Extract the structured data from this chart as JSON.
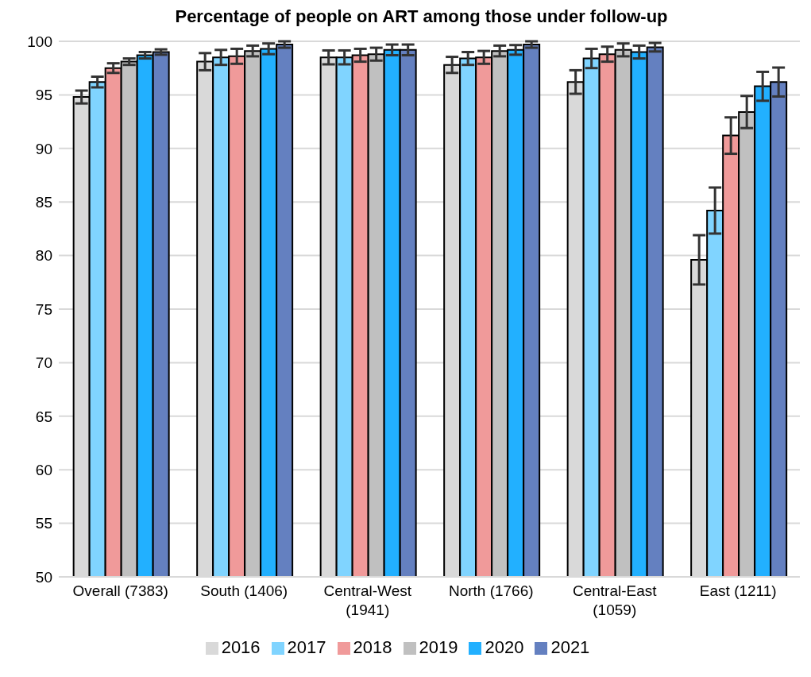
{
  "chart_data": {
    "type": "bar",
    "title": "Percentage of people on ART among those under follow-up",
    "categories": [
      "Overall (7383)",
      "South (1406)",
      "Central-West (1941)",
      "North (1766)",
      "Central-East (1059)",
      "East (1211)"
    ],
    "series": [
      {
        "name": "2016",
        "color": "#d9d9d9",
        "values": [
          94.8,
          98.1,
          98.5,
          97.8,
          96.2,
          79.6
        ],
        "errors": [
          0.6,
          0.8,
          0.65,
          0.75,
          1.1,
          2.3
        ]
      },
      {
        "name": "2017",
        "color": "#80d4ff",
        "values": [
          96.2,
          98.5,
          98.5,
          98.4,
          98.4,
          84.2
        ],
        "errors": [
          0.5,
          0.7,
          0.65,
          0.6,
          0.9,
          2.15
        ]
      },
      {
        "name": "2018",
        "color": "#f09a9a",
        "values": [
          97.5,
          98.6,
          98.7,
          98.5,
          98.8,
          91.2
        ],
        "errors": [
          0.45,
          0.7,
          0.6,
          0.6,
          0.7,
          1.7
        ]
      },
      {
        "name": "2019",
        "color": "#c0c0c0",
        "values": [
          98.1,
          99.1,
          98.8,
          99.1,
          99.2,
          93.4
        ],
        "errors": [
          0.3,
          0.5,
          0.6,
          0.5,
          0.6,
          1.5
        ]
      },
      {
        "name": "2020",
        "color": "#22b0ff",
        "values": [
          98.7,
          99.3,
          99.2,
          99.2,
          99.0,
          95.8
        ],
        "errors": [
          0.3,
          0.5,
          0.5,
          0.45,
          0.6,
          1.35
        ]
      },
      {
        "name": "2021",
        "color": "#6480c0",
        "values": [
          99.0,
          99.7,
          99.2,
          99.7,
          99.45,
          96.2
        ],
        "errors": [
          0.25,
          0.3,
          0.5,
          0.3,
          0.4,
          1.35
        ]
      }
    ],
    "ylim": [
      50,
      100
    ],
    "yticks": [
      50,
      55,
      60,
      65,
      70,
      75,
      80,
      85,
      90,
      95,
      100
    ],
    "grid": "y",
    "legend": "bottom"
  }
}
